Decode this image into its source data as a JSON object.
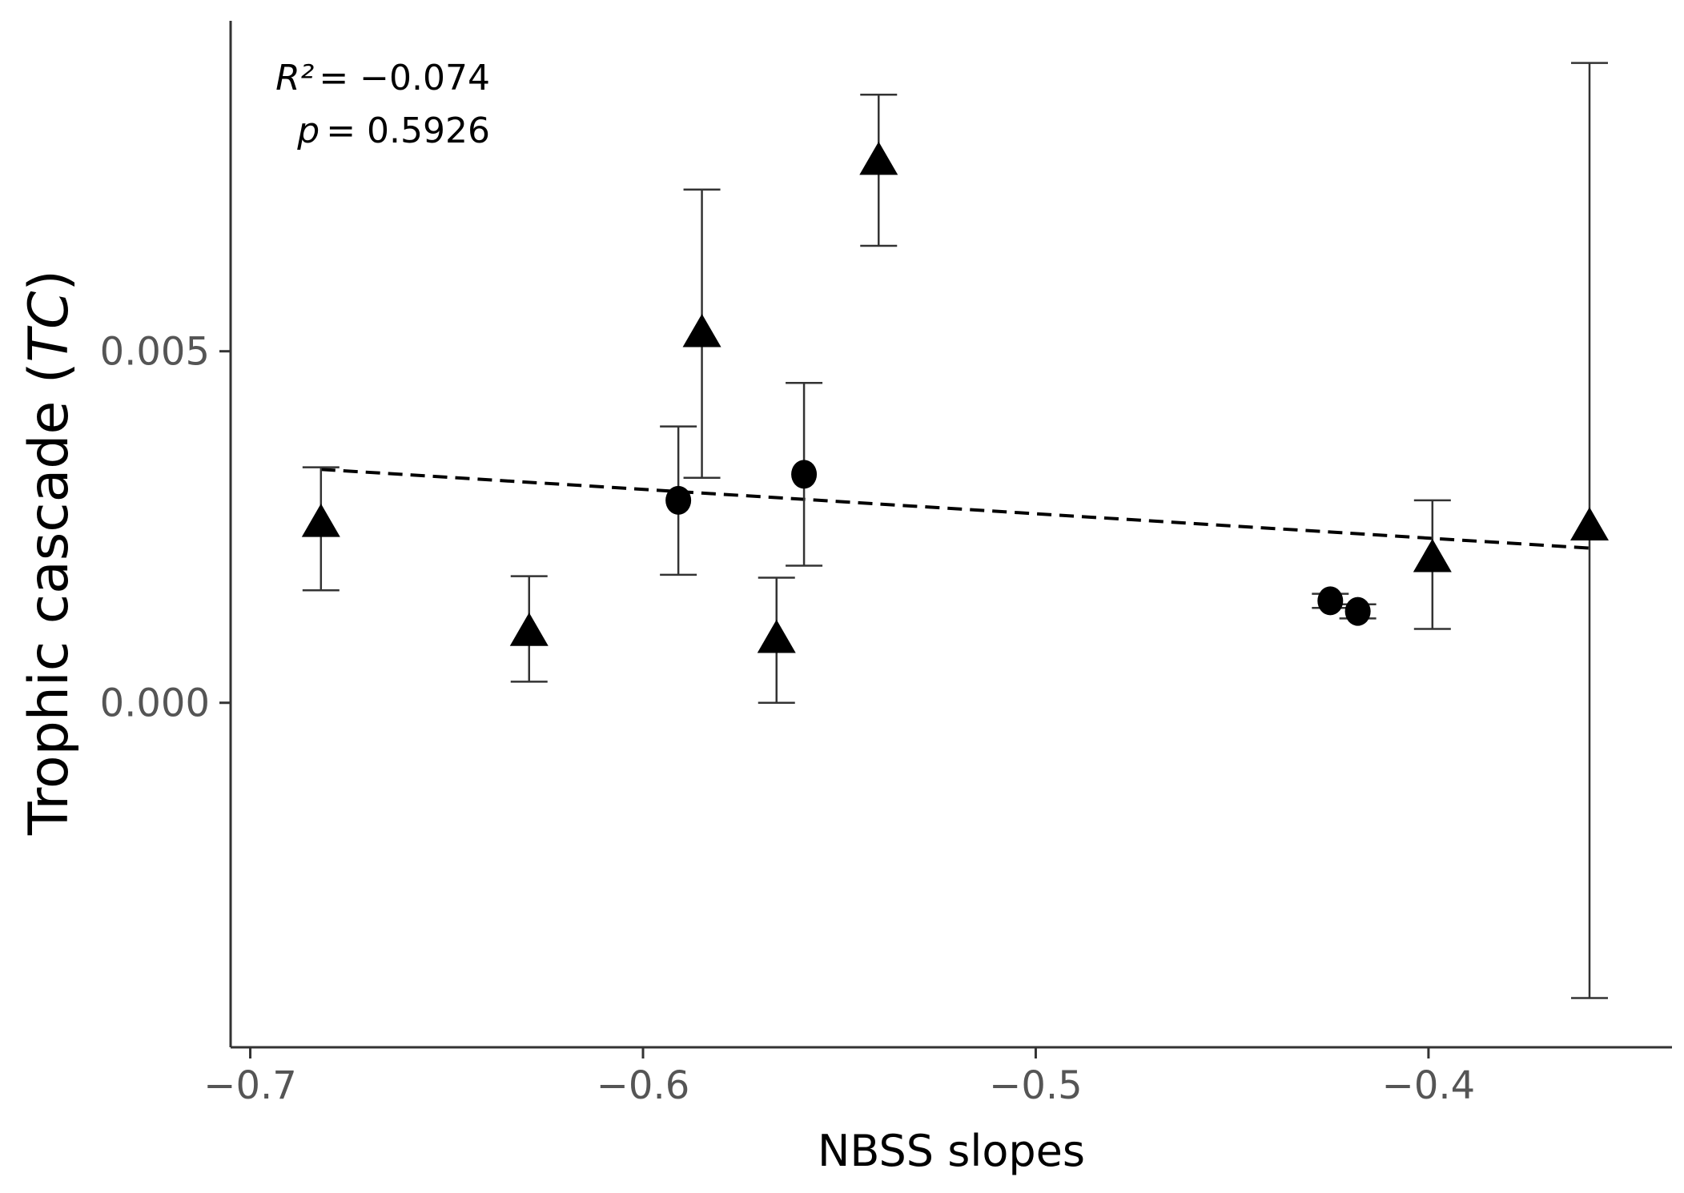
{
  "chart_data": {
    "type": "scatter",
    "title": "",
    "xlabel": "NBSS slopes",
    "ylabel": {
      "main": "Trophic cascade (",
      "italic": "TC",
      "close": ")"
    },
    "xlim": [
      -0.705,
      -0.338
    ],
    "ylim": [
      -0.0049,
      0.0097
    ],
    "xticks": [
      -0.7,
      -0.6,
      -0.5,
      -0.4
    ],
    "xtick_labels": [
      "−0.7",
      "−0.6",
      "−0.5",
      "−0.4"
    ],
    "yticks": [
      0.0,
      0.005
    ],
    "ytick_labels": [
      "0.000",
      "0.005"
    ],
    "grid": false,
    "stats": {
      "r2_symbol": "R²",
      "r2_value": "= −0.074",
      "p_symbol": "p",
      "p_value": "= 0.5926"
    },
    "series": [
      {
        "name": "triangle",
        "marker": "triangle",
        "points": [
          {
            "x": -0.682,
            "y": 0.00255,
            "ymin": 0.0016,
            "ymax": 0.00335
          },
          {
            "x": -0.629,
            "y": 0.001,
            "ymin": 0.0003,
            "ymax": 0.0018
          },
          {
            "x": -0.585,
            "y": 0.00525,
            "ymin": 0.0032,
            "ymax": 0.0073
          },
          {
            "x": -0.566,
            "y": 0.0009,
            "ymin": 0.0,
            "ymax": 0.00178
          },
          {
            "x": -0.54,
            "y": 0.0077,
            "ymin": 0.0065,
            "ymax": 0.00865
          },
          {
            "x": -0.399,
            "y": 0.00205,
            "ymin": 0.00105,
            "ymax": 0.00288
          },
          {
            "x": -0.359,
            "y": 0.0025,
            "ymin": -0.0042,
            "ymax": 0.0091
          }
        ]
      },
      {
        "name": "circle",
        "marker": "circle",
        "points": [
          {
            "x": -0.591,
            "y": 0.00288,
            "ymin": 0.00182,
            "ymax": 0.00393
          },
          {
            "x": -0.559,
            "y": 0.00325,
            "ymin": 0.00195,
            "ymax": 0.00455
          },
          {
            "x": -0.425,
            "y": 0.00145,
            "ymin": 0.00135,
            "ymax": 0.00155
          },
          {
            "x": -0.418,
            "y": 0.0013,
            "ymin": 0.0012,
            "ymax": 0.0014
          }
        ]
      }
    ],
    "fit_line": {
      "style": "dashed",
      "x": [
        -0.682,
        -0.359
      ],
      "y": [
        0.00332,
        0.0022
      ]
    }
  }
}
